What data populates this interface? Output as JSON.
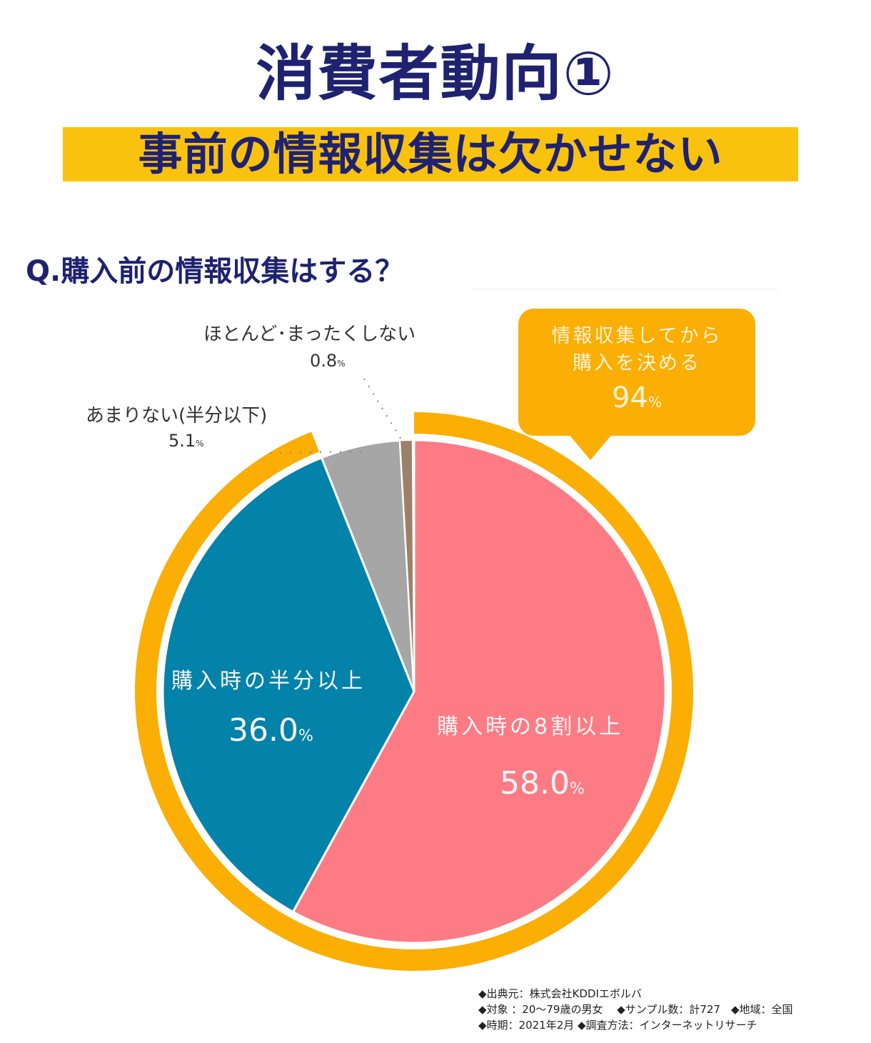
{
  "header": {
    "title": "消費者動向①",
    "subtitle": "事前の情報収集は欠かせない",
    "question": "Q.購入前の情報収集はする？"
  },
  "callout": {
    "line1": "情報収集してから",
    "line2": "購入を決める",
    "value": "94",
    "pct": "%"
  },
  "labels": {
    "pink": {
      "label": "購入時の8割以上",
      "value": "58.0",
      "pct": "%"
    },
    "blue": {
      "label": "購入時の半分以上",
      "value": "36.0",
      "pct": "%"
    },
    "gray": {
      "label": "あまりない(半分以下)",
      "value": "5.1",
      "pct": "%"
    },
    "brown": {
      "label": "ほとんど･まったくしない",
      "value": "0.8",
      "pct": "%"
    }
  },
  "source": {
    "line1": "◆出典元：株式会社KDDIエボルバ",
    "line2": "◆対象 ：20〜79歳の男女　 ◆サンプル数：計727　◆地域：全国",
    "line3": "◆時期：2021年2月 ◆調査方法：インターネットリサーチ"
  },
  "colors": {
    "title": "#1f2270",
    "banner": "#f9c20f",
    "ring": "#fbae03",
    "pink": "#fd7b84",
    "blue": "#0382aa",
    "gray": "#a6a6a6",
    "brown": "#9c8069"
  },
  "chart_data": {
    "type": "pie",
    "title": "Q.購入前の情報収集はする？",
    "categories": [
      "購入時の8割以上",
      "購入時の半分以上",
      "あまりない(半分以下)",
      "ほとんど・まったくしない"
    ],
    "values": [
      58.0,
      36.0,
      5.1,
      0.8
    ],
    "unit": "%",
    "colors": [
      "#fd7b84",
      "#0382aa",
      "#a6a6a6",
      "#9c8069"
    ],
    "annotations": [
      {
        "text": "情報収集してから購入を決める 94%",
        "covers": [
          "購入時の8割以上",
          "購入時の半分以上"
        ],
        "value": 94
      }
    ],
    "start_angle": "12 o'clock, clockwise"
  }
}
